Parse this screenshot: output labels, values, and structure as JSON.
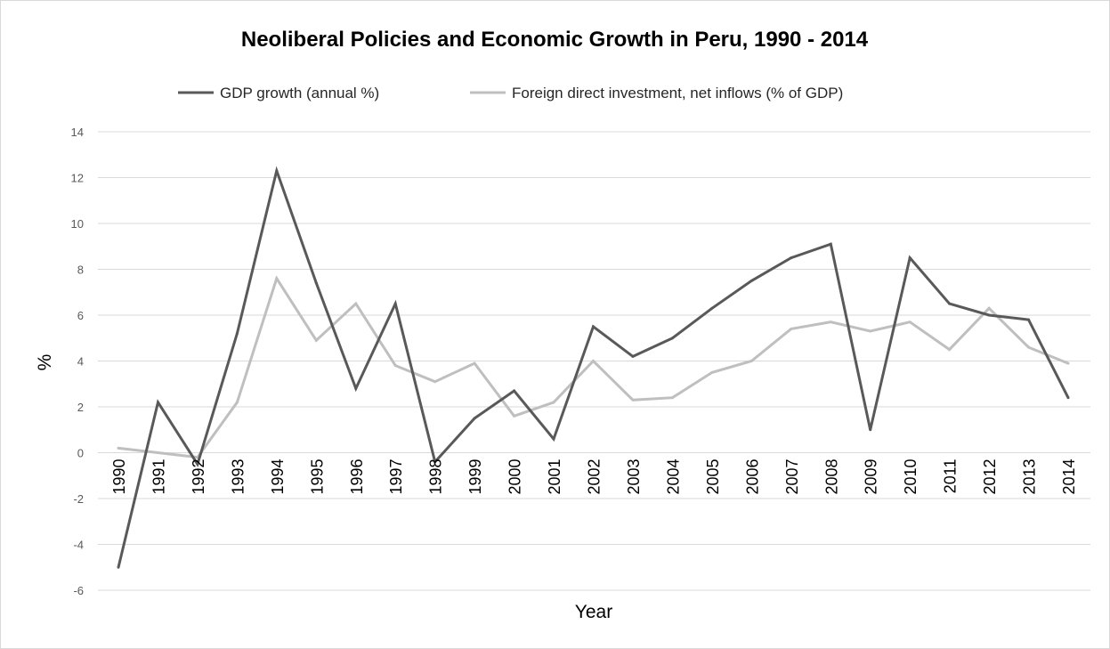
{
  "chart_data": {
    "type": "line",
    "title": "Neoliberal Policies and Economic Growth in Peru, 1990 - 2014",
    "xlabel": "Year",
    "ylabel": "%",
    "ylim": [
      -6,
      14
    ],
    "yticks": [
      -6,
      -4,
      -2,
      0,
      2,
      4,
      6,
      8,
      10,
      12,
      14
    ],
    "grid": true,
    "legend_position": "top",
    "categories": [
      "1990",
      "1991",
      "1992",
      "1993",
      "1994",
      "1995",
      "1996",
      "1997",
      "1998",
      "1999",
      "2000",
      "2001",
      "2002",
      "2003",
      "2004",
      "2005",
      "2006",
      "2007",
      "2008",
      "2009",
      "2010",
      "2011",
      "2012",
      "2013",
      "2014"
    ],
    "series": [
      {
        "name": "GDP growth (annual %)",
        "color": "#595959",
        "values": [
          -5.0,
          2.2,
          -0.5,
          5.2,
          12.3,
          7.4,
          2.8,
          6.5,
          -0.4,
          1.5,
          2.7,
          0.6,
          5.5,
          4.2,
          5.0,
          6.3,
          7.5,
          8.5,
          9.1,
          1.0,
          8.5,
          6.5,
          6.0,
          5.8,
          2.4
        ]
      },
      {
        "name": "Foreign direct investment, net inflows (% of GDP)",
        "color": "#bfbfbf",
        "values": [
          0.2,
          0.0,
          -0.2,
          2.2,
          7.6,
          4.9,
          6.5,
          3.8,
          3.1,
          3.9,
          1.6,
          2.2,
          4.0,
          2.3,
          2.4,
          3.5,
          4.0,
          5.4,
          5.7,
          5.3,
          5.7,
          4.5,
          6.3,
          4.6,
          3.9
        ]
      }
    ]
  }
}
